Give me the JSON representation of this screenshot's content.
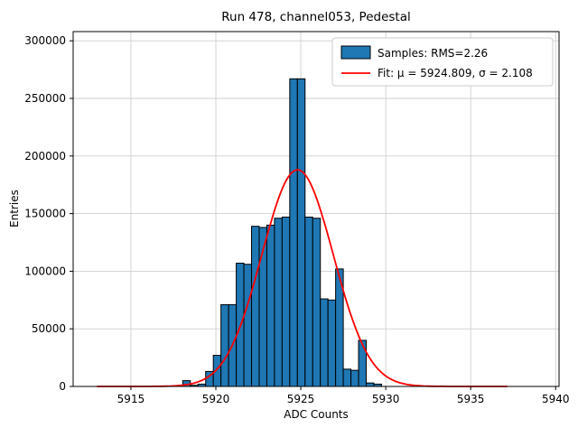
{
  "figure": {
    "title": "Run 478, channel053, Pedestal",
    "xlabel": "ADC Counts",
    "ylabel": "Entries"
  },
  "legend": {
    "samples_label": "Samples: RMS=2.26",
    "fit_label": "Fit: μ = 5924.809, σ = 2.108"
  },
  "colors": {
    "bar_fill": "#1f77b4",
    "bar_edge": "#000000",
    "fit_line": "#ff0000",
    "grid": "#cfcfcf"
  },
  "chart_data": {
    "type": "bar",
    "title": "Run 478, channel053, Pedestal",
    "xlabel": "ADC Counts",
    "ylabel": "Entries",
    "bin_start": 5918.05,
    "bin_width": 0.45,
    "counts": [
      5000,
      1000,
      2000,
      13000,
      27000,
      71000,
      71000,
      107000,
      106000,
      139000,
      138000,
      140000,
      146000,
      147000,
      267000,
      267000,
      147000,
      146000,
      76000,
      75000,
      102000,
      15000,
      14000,
      40000,
      3000,
      2000
    ],
    "fit": {
      "mu": 5924.809,
      "sigma": 2.108,
      "amplitude": 188000,
      "rms": 2.26
    },
    "x_ticks": [
      5915,
      5920,
      5925,
      5930,
      5935,
      5940
    ],
    "y_ticks": [
      0,
      50000,
      100000,
      150000,
      200000,
      250000,
      300000
    ],
    "xlim": [
      5911.6,
      5940.2
    ],
    "ylim": [
      0,
      308000
    ],
    "curve_range": [
      5913.0,
      5937.2
    ],
    "grid": true,
    "legend_position": "upper right"
  }
}
